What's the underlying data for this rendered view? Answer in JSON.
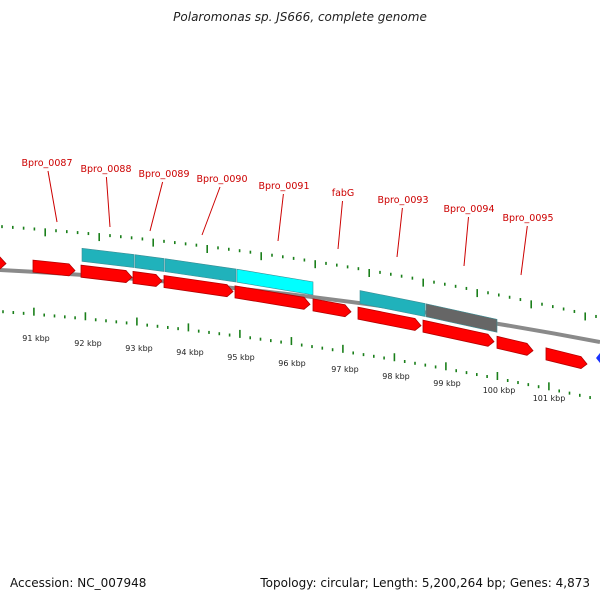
{
  "title": "Polaromonas sp. JS666, complete genome",
  "footer": {
    "accession": "Accession: NC_007948",
    "summary": "Topology: circular; Length: 5,200,264 bp; Genes: 4,873"
  },
  "colors": {
    "cds": "#ff0000",
    "cds_dark": "#b30000",
    "feature_teal": "#20b2bb",
    "feature_cyan": "#00ffff",
    "feature_gray": "#666666",
    "backbone": "#888888",
    "tick_green": "#1a7f1a",
    "label_red": "#cc0000",
    "marker_blue": "#1a33ff"
  },
  "gene_labels": [
    "Bpro_0087",
    "Bpro_0088",
    "Bpro_0089",
    "Bpro_0090",
    "Bpro_0091",
    "fabG",
    "Bpro_0093",
    "Bpro_0094",
    "Bpro_0095"
  ],
  "kbp_labels": [
    "91 kbp",
    "92 kbp",
    "93 kbp",
    "94 kbp",
    "95 kbp",
    "96 kbp",
    "97 kbp",
    "98 kbp",
    "99 kbp",
    "100 kbp",
    "101 kbp"
  ]
}
